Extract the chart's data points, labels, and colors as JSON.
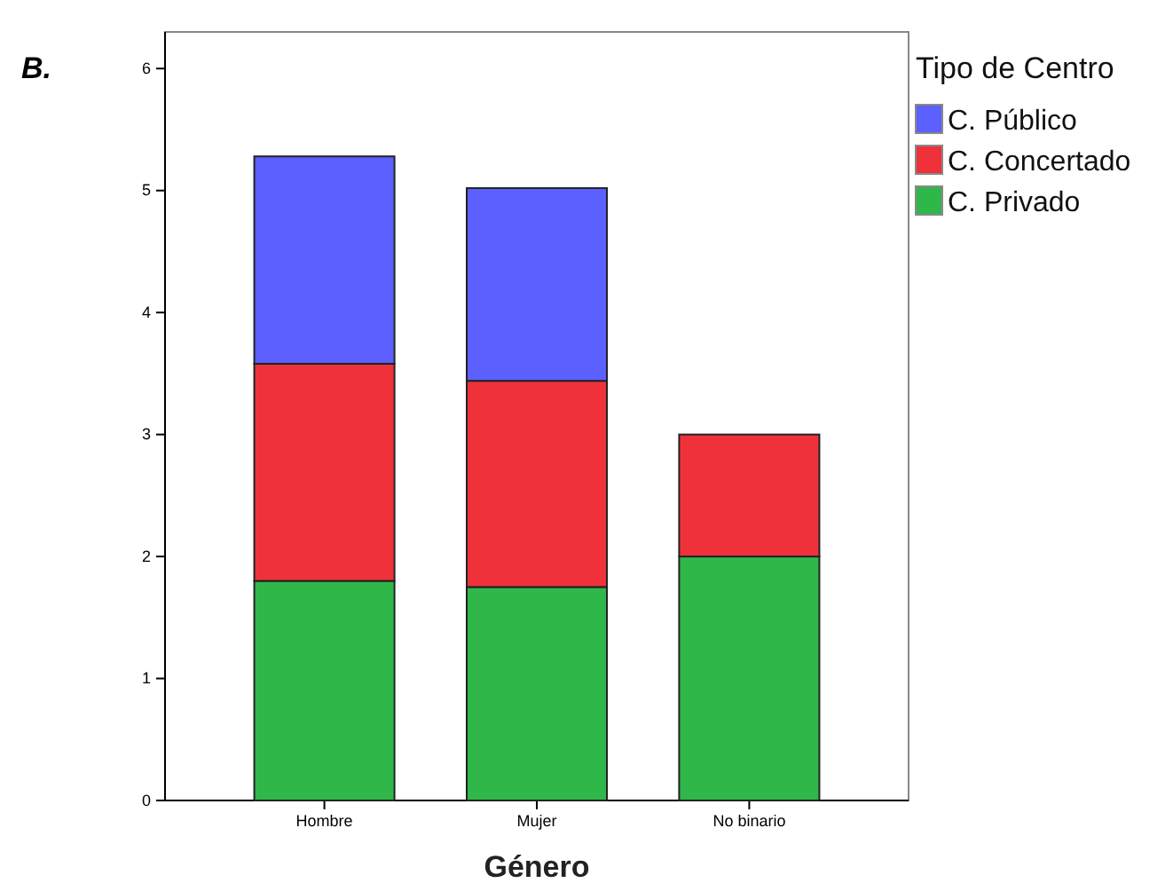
{
  "chart_data": {
    "type": "bar",
    "stacked": true,
    "xlabel": "Género",
    "legend_title": "Tipo de Centro",
    "legend": "top right",
    "grid": false,
    "annotations": [
      "B."
    ],
    "categories": [
      "Hombre",
      "Mujer",
      "No binario"
    ],
    "ylim": [
      0,
      6.3
    ],
    "yticks": [
      0,
      1,
      2,
      3,
      4,
      5,
      6
    ],
    "series": [
      {
        "name": "C. Privado",
        "color": "#30b74a",
        "values": [
          1.8,
          1.75,
          2
        ]
      },
      {
        "name": "C. Concertado",
        "color": "#ef323a",
        "values": [
          1.78,
          1.69,
          1
        ]
      },
      {
        "name": "C. Público",
        "color": "#5b60ff",
        "values": [
          1.7,
          1.58,
          null
        ]
      }
    ]
  }
}
